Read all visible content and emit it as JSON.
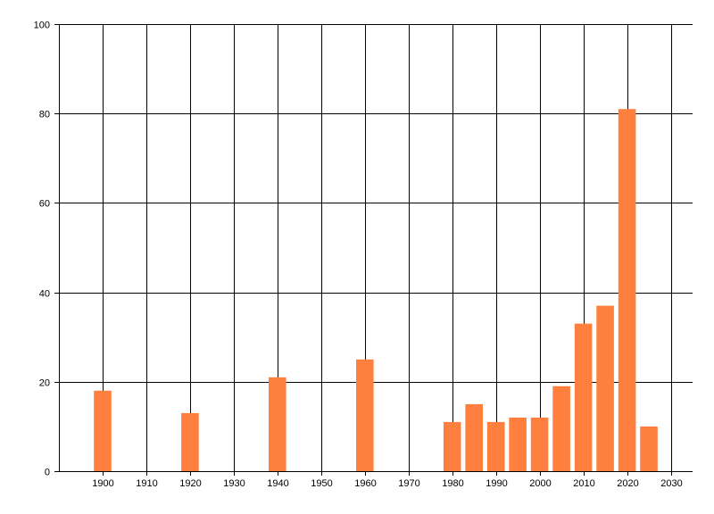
{
  "chart_data": {
    "type": "bar",
    "title": "",
    "xlabel": "",
    "ylabel": "",
    "x": [
      1900,
      1920,
      1940,
      1960,
      1980,
      1985,
      1990,
      1995,
      2000,
      2005,
      2010,
      2015,
      2020,
      2025
    ],
    "values": [
      18,
      13,
      21,
      25,
      11,
      15,
      11,
      12,
      12,
      19,
      33,
      37,
      81,
      10
    ],
    "xlim": [
      1890,
      2035
    ],
    "ylim": [
      0,
      100
    ],
    "x_ticks": [
      1900,
      1910,
      1920,
      1930,
      1940,
      1950,
      1960,
      1970,
      1980,
      1990,
      2000,
      2010,
      2020,
      2030
    ],
    "y_ticks": [
      0,
      20,
      40,
      60,
      80,
      100
    ],
    "grid": true,
    "bar_width_years": 4,
    "colors": {
      "bar": "#ff7f3f",
      "grid": "#000000",
      "axis": "#000000",
      "background": "#ffffff"
    }
  }
}
